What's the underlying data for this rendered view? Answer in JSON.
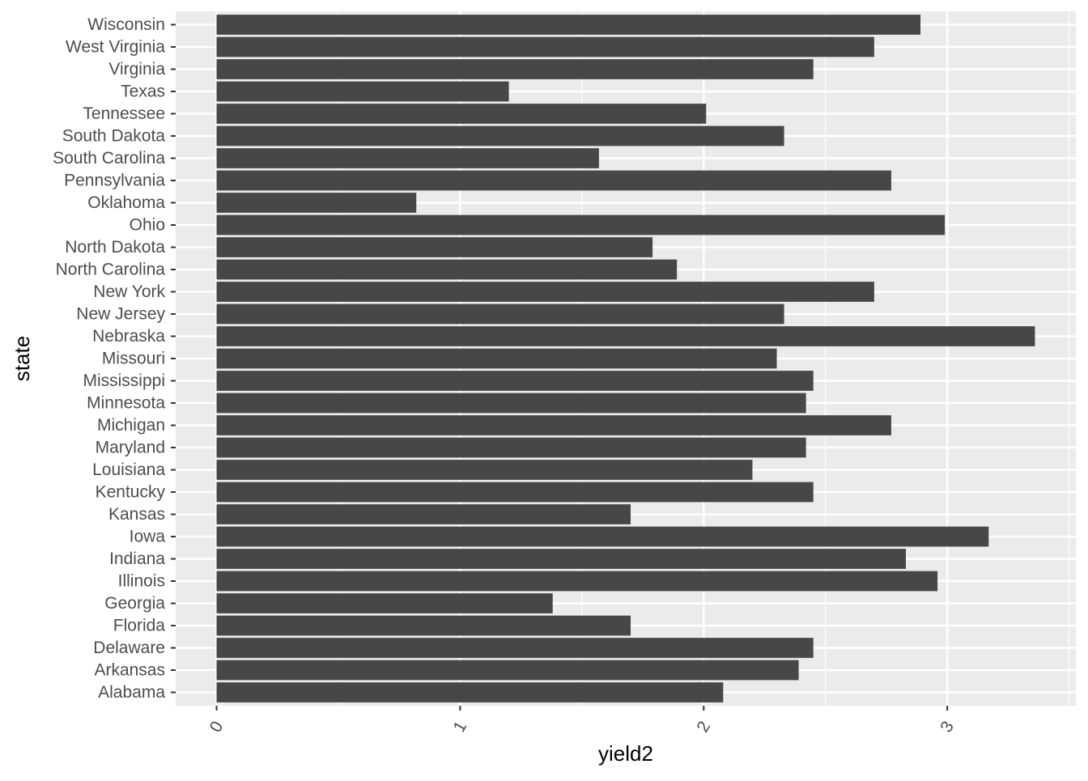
{
  "chart_data": {
    "type": "bar",
    "orientation": "horizontal",
    "title": "",
    "xlabel": "yield2",
    "ylabel": "state",
    "categories": [
      "Alabama",
      "Arkansas",
      "Delaware",
      "Florida",
      "Georgia",
      "Illinois",
      "Indiana",
      "Iowa",
      "Kansas",
      "Kentucky",
      "Louisiana",
      "Maryland",
      "Michigan",
      "Minnesota",
      "Mississippi",
      "Missouri",
      "Nebraska",
      "New Jersey",
      "New York",
      "North Carolina",
      "North Dakota",
      "Ohio",
      "Oklahoma",
      "Pennsylvania",
      "South Carolina",
      "South Dakota",
      "Tennessee",
      "Texas",
      "Virginia",
      "West Virginia",
      "Wisconsin"
    ],
    "values": [
      2.08,
      2.39,
      2.45,
      1.7,
      1.38,
      2.96,
      2.83,
      3.17,
      1.7,
      2.45,
      2.2,
      2.42,
      2.77,
      2.42,
      2.45,
      2.3,
      3.36,
      2.33,
      2.7,
      1.89,
      1.79,
      2.99,
      0.82,
      2.77,
      1.57,
      2.33,
      2.01,
      1.2,
      2.45,
      2.7,
      2.89
    ],
    "x_ticks": [
      0,
      1,
      2,
      3
    ],
    "xlim": [
      -0.168,
      3.528
    ],
    "grid": true,
    "legend": "none",
    "colors": {
      "panel": "#ebebeb",
      "grid": "#ffffff",
      "bar": "#474747",
      "tick_text": "#4d4d4d",
      "tick_mark": "#333333"
    }
  }
}
